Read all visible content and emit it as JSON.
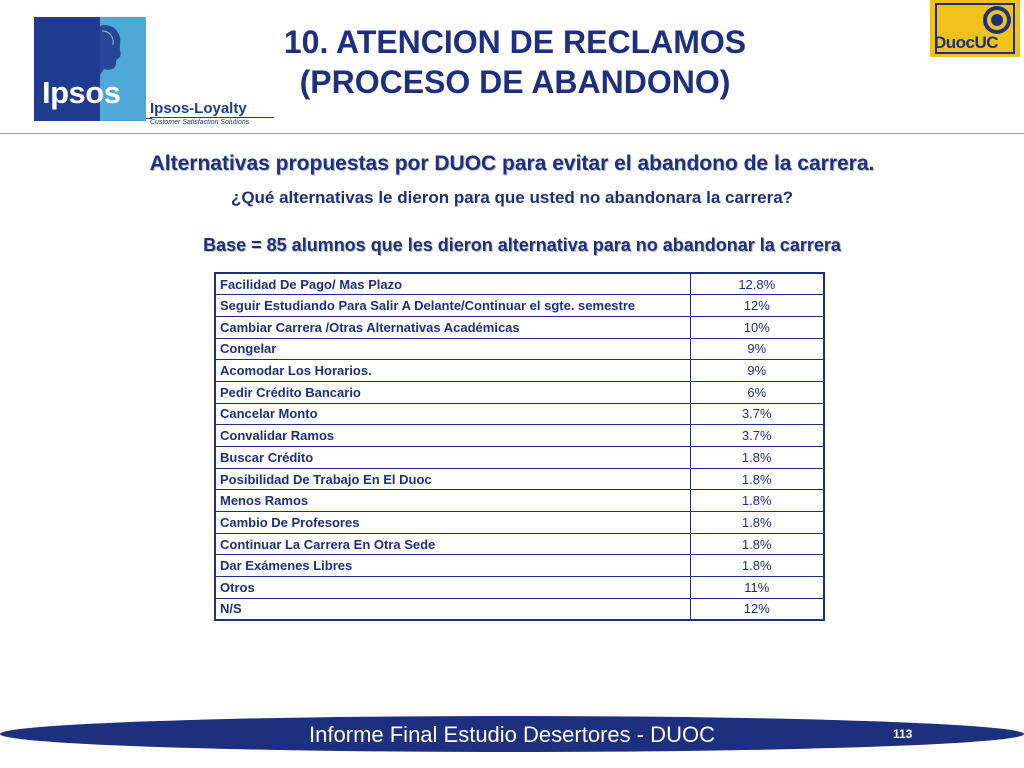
{
  "logos": {
    "ipsos_word": "Ipsos",
    "ipsos_loyalty": "Ipsos-Loyalty",
    "ipsos_tagline": "Customer Satisfaction Solutions",
    "duoc_word": "DuocUC"
  },
  "title": {
    "line1": "10. ATENCION DE RECLAMOS",
    "line2": "(PROCESO DE ABANDONO)"
  },
  "subtitle": "Alternativas propuestas por DUOC para evitar el abandono de la carrera.",
  "question": "¿Qué alternativas le dieron para que usted no abandonara la carrera?",
  "base": "Base = 85 alumnos que les dieron alternativa para no  abandonar la carrera",
  "table": {
    "rows": [
      {
        "label": "Facilidad De Pago/ Mas Plazo",
        "value": "12.8%"
      },
      {
        "label": "Seguir Estudiando Para Salir A Delante/Continuar el sgte. semestre",
        "value": "12%"
      },
      {
        "label": "Cambiar Carrera /Otras Alternativas Académicas",
        "value": "10%"
      },
      {
        "label": "Congelar",
        "value": "9%"
      },
      {
        "label": "Acomodar Los Horarios.",
        "value": "9%"
      },
      {
        "label": "Pedir Crédito Bancario",
        "value": "6%"
      },
      {
        "label": "Cancelar Monto",
        "value": "3.7%"
      },
      {
        "label": "Convalidar Ramos",
        "value": "3.7%"
      },
      {
        "label": "Buscar Crédito",
        "value": "1.8%"
      },
      {
        "label": "Posibilidad De Trabajo En El Duoc",
        "value": "1.8%"
      },
      {
        "label": "Menos Ramos",
        "value": "1.8%"
      },
      {
        "label": "Cambio De Profesores",
        "value": "1.8%"
      },
      {
        "label": "Continuar La Carrera En Otra Sede",
        "value": "1.8%"
      },
      {
        "label": "Dar Exámenes Libres",
        "value": "1.8%"
      },
      {
        "label": "Otros",
        "value": "11%"
      },
      {
        "label": "N/S",
        "value": "12%"
      }
    ]
  },
  "footer": {
    "text": "Informe Final Estudio Desertores - DUOC",
    "page_number": "113"
  },
  "colors": {
    "primary": "#1f2f7f",
    "ipsos_blue": "#1f3c8f",
    "ipsos_light": "#4fa9d8",
    "duoc_yellow": "#f1c21b"
  }
}
